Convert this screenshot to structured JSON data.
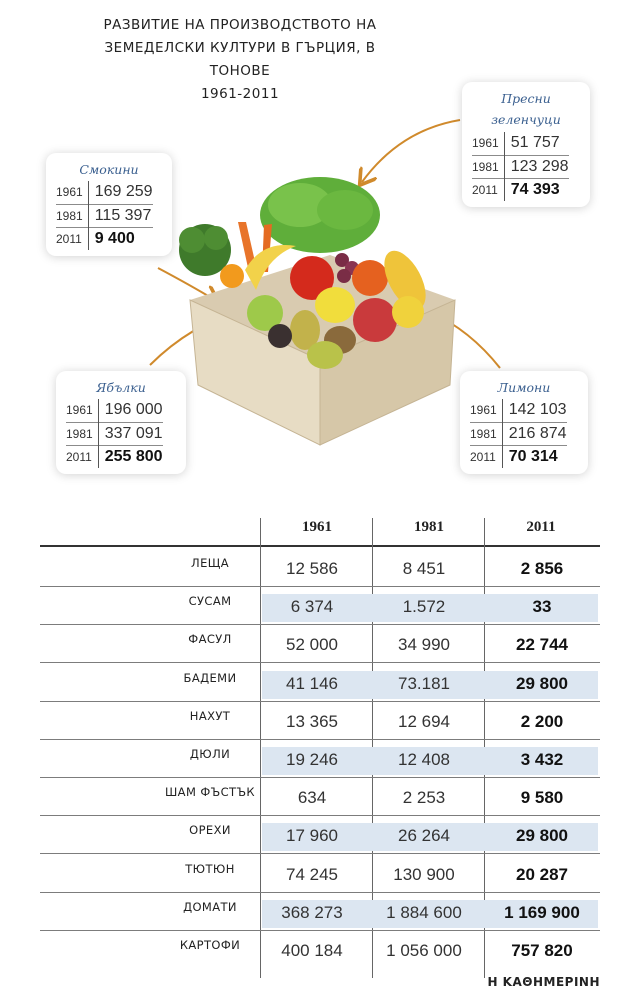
{
  "title": {
    "lines": [
      "РАЗВИТИЕ НА ПРОИЗВОДСТВОТО НА",
      "ЗЕМЕДЕЛСКИ КУЛТУРИ В ГЪРЦИЯ, В",
      "ТОНОВЕ",
      "1961-2011"
    ]
  },
  "cards": {
    "figs": {
      "name": "Смокини",
      "rows": [
        [
          "1961",
          "169 259"
        ],
        [
          "1981",
          "115 397"
        ],
        [
          "2011",
          "9 400"
        ]
      ]
    },
    "vegetables": {
      "name": "Пресни зеленчуци",
      "rows": [
        [
          "1961",
          "51 757"
        ],
        [
          "1981",
          "123 298"
        ],
        [
          "2011",
          "74 393"
        ]
      ]
    },
    "apples": {
      "name": "Ябълки",
      "rows": [
        [
          "1961",
          "196 000"
        ],
        [
          "1981",
          "337 091"
        ],
        [
          "2011",
          "255 800"
        ]
      ]
    },
    "lemons": {
      "name": "Лимони",
      "rows": [
        [
          "1961",
          "142 103"
        ],
        [
          "1981",
          "216 874"
        ],
        [
          "2011",
          "70 314"
        ]
      ]
    }
  },
  "table": {
    "years": [
      "1961",
      "1981",
      "2011"
    ],
    "rows": [
      {
        "label": "ЛЕЩА",
        "values": [
          "12 586",
          "8 451",
          "2 856"
        ]
      },
      {
        "label": "СУСАМ",
        "values": [
          "6 374",
          "1.572",
          "33"
        ]
      },
      {
        "label": "ФАСУЛ",
        "values": [
          "52 000",
          "34 990",
          "22 744"
        ]
      },
      {
        "label": "БАДЕМИ",
        "values": [
          "41 146",
          "73.181",
          "29 800"
        ]
      },
      {
        "label": "НАХУТ",
        "values": [
          "13 365",
          "12 694",
          "2 200"
        ]
      },
      {
        "label": "ДЮЛИ",
        "values": [
          "19 246",
          "12 408",
          "3 432"
        ]
      },
      {
        "label": "ШАМ ФЪСТЪК",
        "values": [
          "634",
          "2 253",
          "9 580"
        ]
      },
      {
        "label": "ОРЕХИ",
        "values": [
          "17 960",
          "26 264",
          "29 800"
        ]
      },
      {
        "label": "ТЮТЮН",
        "values": [
          "74 245",
          "130 900",
          "20 287"
        ]
      },
      {
        "label": "ДОМАТИ",
        "values": [
          "368 273",
          "1 884 600",
          "1 169 900"
        ]
      },
      {
        "label": "КАРТОФИ",
        "values": [
          "400 184",
          "1 056 000",
          "757 820"
        ]
      }
    ]
  },
  "brand": "Η ΚΑΘΗΜΕΡΙΝΗ"
}
